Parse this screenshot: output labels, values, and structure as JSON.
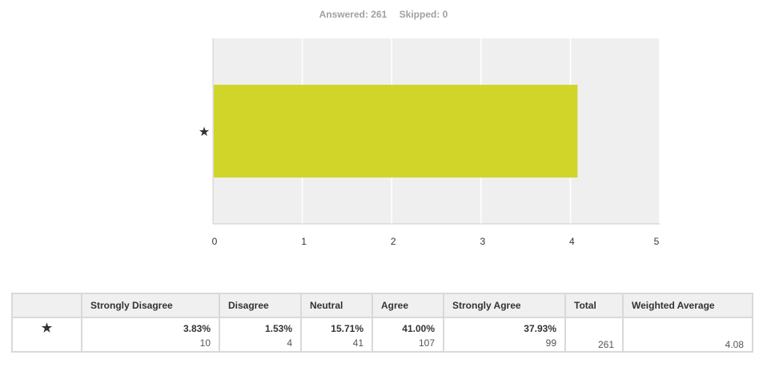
{
  "summary": {
    "answered": "Answered: 261",
    "skipped": "Skipped: 0"
  },
  "chart_data": {
    "type": "bar",
    "orientation": "horizontal",
    "categories": [
      "★"
    ],
    "values": [
      4.08
    ],
    "xlim": [
      0,
      5
    ],
    "xticks": [
      "0",
      "1",
      "2",
      "3",
      "4",
      "5"
    ],
    "grid": true,
    "bar_color": "#d1d52a",
    "plot_background": "#efefef"
  },
  "table": {
    "headers": [
      "",
      "Strongly Disagree",
      "Disagree",
      "Neutral",
      "Agree",
      "Strongly Agree",
      "Total",
      "Weighted Average"
    ],
    "row": {
      "label": "★",
      "cells": [
        {
          "pct": "3.83%",
          "count": "10"
        },
        {
          "pct": "1.53%",
          "count": "4"
        },
        {
          "pct": "15.71%",
          "count": "41"
        },
        {
          "pct": "41.00%",
          "count": "107"
        },
        {
          "pct": "37.93%",
          "count": "99"
        }
      ],
      "total": "261",
      "weighted_average": "4.08"
    }
  }
}
